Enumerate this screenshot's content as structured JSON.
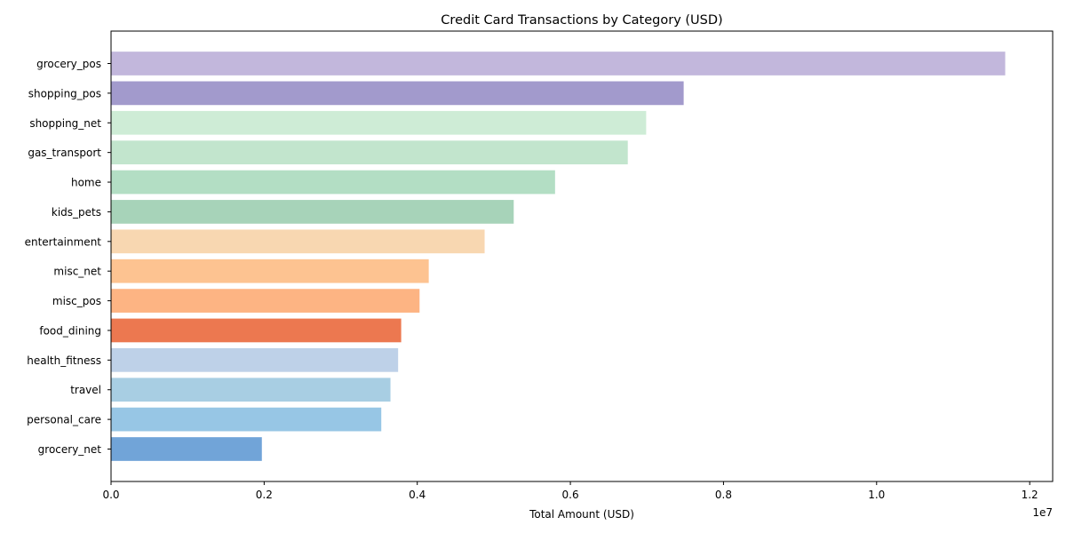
{
  "chart_data": {
    "type": "bar",
    "orientation": "horizontal",
    "title": "Credit Card Transactions by Category (USD)",
    "xlabel": "Total Amount (USD)",
    "ylabel": "",
    "offset_label": "1e7",
    "xlim": [
      0,
      12300000
    ],
    "xticks": [
      0,
      2000000,
      4000000,
      6000000,
      8000000,
      10000000,
      12000000
    ],
    "xtick_labels": [
      "0.0",
      "0.2",
      "0.4",
      "0.6",
      "0.8",
      "1.0",
      "1.2"
    ],
    "grid": false,
    "categories": [
      "grocery_pos",
      "shopping_pos",
      "shopping_net",
      "gas_transport",
      "home",
      "kids_pets",
      "entertainment",
      "misc_net",
      "misc_pos",
      "food_dining",
      "health_fitness",
      "travel",
      "personal_care",
      "grocery_net"
    ],
    "values": [
      11680000,
      7480000,
      6990000,
      6750000,
      5800000,
      5260000,
      4880000,
      4150000,
      4030000,
      3790000,
      3750000,
      3650000,
      3530000,
      1970000
    ],
    "colors": [
      "#c2b7dc",
      "#a29acc",
      "#ceecd6",
      "#c2e5cd",
      "#b3dec4",
      "#a7d3b9",
      "#f8d7b1",
      "#fdc391",
      "#fdb483",
      "#ec7850",
      "#bed1e8",
      "#a8cee3",
      "#97c6e5",
      "#71a4d8"
    ]
  }
}
